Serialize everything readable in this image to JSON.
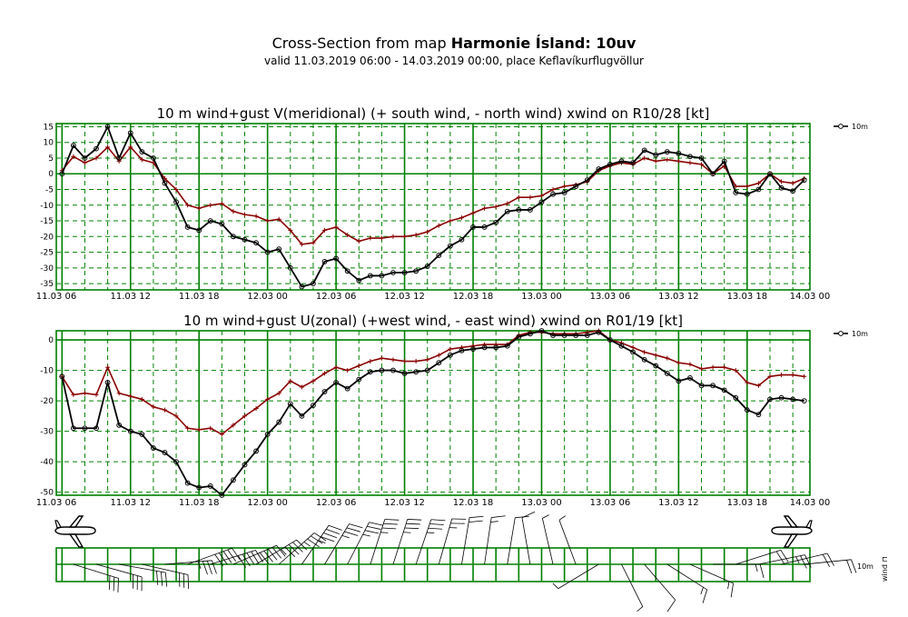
{
  "header": {
    "title_prefix": "Cross-Section from map ",
    "title_bold": "Harmonie Ísland: 10uv",
    "subtitle": "valid 11.03.2019 06:00 - 14.03.2019 00:00, place Keflavíkurflugvöllur"
  },
  "colors": {
    "wind": "#000000",
    "gust": "#8b0000",
    "grid": "#008000",
    "frame": "#008000"
  },
  "chart_data": [
    {
      "type": "line",
      "title": "10 m wind+gust V(meridional) (+ south wind, - north wind) xwind on R10/28 [kt]",
      "ylim": [
        -37,
        16
      ],
      "yticks": [
        15,
        10,
        5,
        0,
        -5,
        -10,
        -15,
        -20,
        -25,
        -30,
        -35
      ],
      "x_major_labels": [
        "11.03 06",
        "11.03 12",
        "11.03 18",
        "12.03 00",
        "12.03 06",
        "12.03 12",
        "12.03 18",
        "13.03 00",
        "13.03 06",
        "13.03 12",
        "13.03 18",
        "14.03 00"
      ],
      "legend": "10m",
      "grid": true,
      "series": [
        {
          "name": "10m",
          "values": [
            0,
            9,
            5,
            8,
            15,
            5,
            13,
            7,
            5,
            -3,
            -9,
            -17,
            -18,
            -15,
            -16,
            -20,
            -21,
            -22,
            -25,
            -24,
            -30,
            -36,
            -35,
            -28,
            -27,
            -31,
            -34,
            -32.5,
            -32.5,
            -31.5,
            -31.5,
            -31,
            -29.5,
            -26,
            -23,
            -21,
            -17,
            -17,
            -15.5,
            -12,
            -11.5,
            -11.5,
            -9,
            -6.5,
            -6,
            -4,
            -2,
            1.5,
            3,
            4,
            3.5,
            7.5,
            6,
            7,
            6.5,
            5.5,
            5,
            0,
            4,
            -6,
            -6.5,
            -5,
            0,
            -4.5,
            -5.5,
            -2
          ]
        },
        {
          "values": [
            1,
            5.5,
            3.5,
            5,
            8.5,
            4,
            8.5,
            4.5,
            3.5,
            -1.5,
            -5,
            -10,
            -11,
            -10,
            -9.5,
            -12,
            -13,
            -13.5,
            -15,
            -14.5,
            -18,
            -22.5,
            -22,
            -18,
            -17,
            -19.5,
            -21.5,
            -20.5,
            -20.5,
            -20,
            -20,
            -19.5,
            -18.5,
            -16.5,
            -15,
            -14,
            -12.5,
            -11,
            -10.5,
            -9.5,
            -7.5,
            -7.5,
            -7,
            -5,
            -4,
            -3.5,
            -2.5,
            1,
            2.5,
            3.5,
            3,
            5,
            4,
            4.5,
            4,
            3.5,
            3,
            0,
            2.5,
            -4,
            -4,
            -3,
            0,
            -2.5,
            -3,
            -1.5
          ]
        }
      ]
    },
    {
      "type": "line",
      "title": "10 m wind+gust U(zonal) (+west wind, - east wind) xwind on R01/19 [kt]",
      "ylim": [
        -51,
        3
      ],
      "yticks": [
        0,
        -10,
        -20,
        -30,
        -40,
        -50
      ],
      "x_major_labels": [
        "11.03 06",
        "11.03 12",
        "11.03 18",
        "12.03 00",
        "12.03 06",
        "12.03 12",
        "12.03 18",
        "13.03 00",
        "13.03 06",
        "13.03 12",
        "13.03 18",
        "14.03 00"
      ],
      "legend": "10m",
      "grid": true,
      "series": [
        {
          "name": "10m",
          "values": [
            -12,
            -29,
            -29,
            -29,
            -14,
            -28,
            -30,
            -31,
            -35.5,
            -37,
            -40,
            -47,
            -48.5,
            -48,
            -51,
            -46,
            -41,
            -36.5,
            -31,
            -27,
            -21,
            -25,
            -21.5,
            -17,
            -14,
            -16,
            -13,
            -10.5,
            -10,
            -10,
            -11,
            -10.5,
            -10,
            -7.5,
            -5,
            -3.5,
            -3,
            -2.5,
            -2.5,
            -2,
            1,
            2,
            3,
            1.5,
            1.5,
            1.5,
            1.5,
            2.5,
            0,
            -2,
            -4,
            -6.5,
            -8.5,
            -11,
            -13.5,
            -12.5,
            -15,
            -15,
            -16.5,
            -19,
            -23,
            -24.5,
            -19.5,
            -19,
            -19.5,
            -20
          ]
        },
        {
          "values": [
            -12,
            -18,
            -17.5,
            -18,
            -9,
            -17.5,
            -18.5,
            -19.5,
            -22,
            -23,
            -25,
            -29,
            -29.5,
            -29,
            -31,
            -28,
            -25,
            -22.5,
            -19.5,
            -17.5,
            -13.5,
            -15.5,
            -13.5,
            -11,
            -9,
            -10,
            -8.5,
            -7,
            -6,
            -6.5,
            -7,
            -7,
            -6.5,
            -5,
            -3,
            -2.5,
            -2,
            -1.5,
            -1.5,
            -1.5,
            1.5,
            2.5,
            2.5,
            2,
            2,
            2,
            2.5,
            3,
            0,
            -1,
            -2.5,
            -4,
            -5,
            -6,
            -7.5,
            -8,
            -9.5,
            -9,
            -9,
            -10,
            -14,
            -15,
            -12,
            -11.5,
            -11.5,
            -12
          ]
        }
      ]
    }
  ],
  "wind_panel": {
    "legend_a": "10m",
    "legend_b": "wind ⊓"
  }
}
